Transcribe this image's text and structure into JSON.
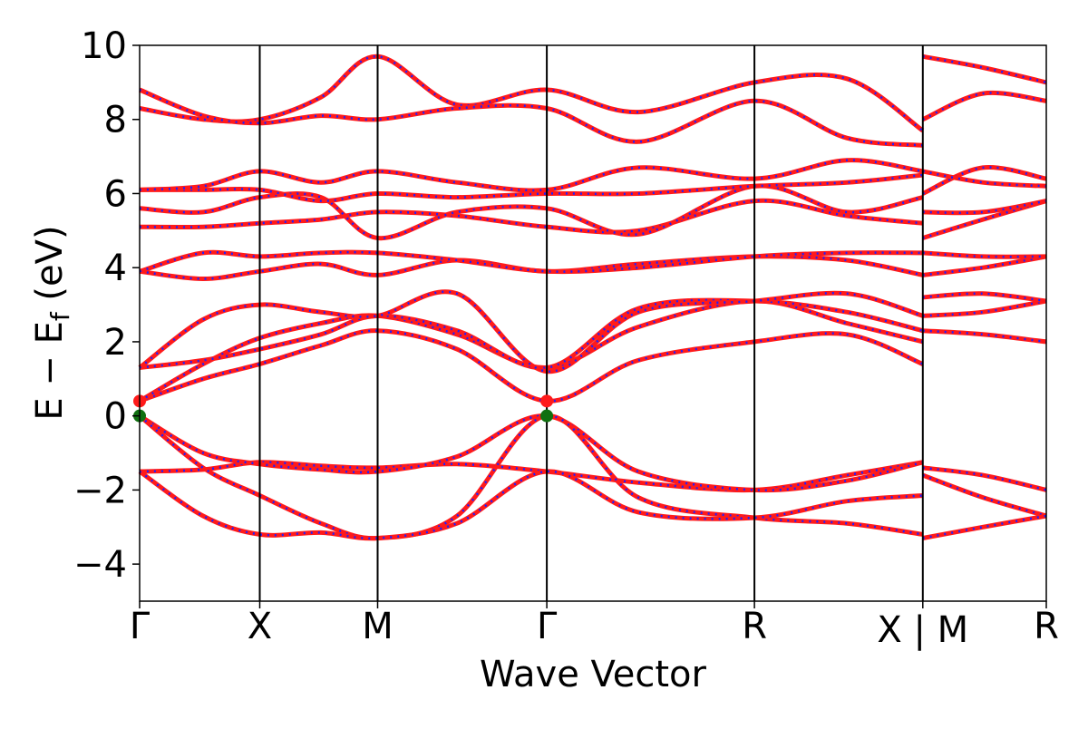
{
  "chart_data": {
    "type": "line",
    "title": "",
    "xlabel": "Wave Vector",
    "ylabel": "E − E_f (eV)",
    "ylabel_main": "E − E",
    "ylabel_sub": "f",
    "ylabel_unit": " (eV)",
    "ylim": [
      -5,
      10
    ],
    "yticks": [
      -4,
      -2,
      0,
      2,
      4,
      6,
      8,
      10
    ],
    "ytick_labels": [
      "−4",
      "−2",
      "0",
      "2",
      "4",
      "6",
      "8",
      "10"
    ],
    "xlim": [
      0,
      1
    ],
    "kpoints": [
      {
        "label": "Γ",
        "x": 0.0
      },
      {
        "label": "X",
        "x": 0.1325
      },
      {
        "label": "M",
        "x": 0.2625
      },
      {
        "label": "Γ",
        "x": 0.4491
      },
      {
        "label": "R",
        "x": 0.6781
      },
      {
        "label": "X | M",
        "x": 0.8638
      },
      {
        "label": "R",
        "x": 1.0
      }
    ],
    "line_colors": {
      "band": "#ff1a1a",
      "overlay": "#1f1fff",
      "vline": "#000000"
    },
    "markers": [
      {
        "x": 0.0,
        "y": 0.4,
        "color": "#ff1a1a"
      },
      {
        "x": 0.0,
        "y": 0.0,
        "color": "#107010"
      },
      {
        "x": 0.4491,
        "y": 0.4,
        "color": "#ff1a1a"
      },
      {
        "x": 0.4491,
        "y": 0.0,
        "color": "#107010"
      }
    ],
    "series": [
      {
        "x": [
          0,
          0.07,
          0.1325,
          0.2,
          0.2625,
          0.35,
          0.4491,
          0.55,
          0.6781,
          0.78,
          0.8638
        ],
        "values": [
          -1.5,
          -1.45,
          -1.25,
          -1.35,
          -1.4,
          -1.3,
          -1.5,
          -1.8,
          -2.0,
          -1.6,
          -1.25
        ]
      },
      {
        "x": [
          0,
          0.07,
          0.1325,
          0.2,
          0.2625,
          0.35,
          0.4491,
          0.55,
          0.6781,
          0.78,
          0.8638
        ],
        "values": [
          0.0,
          -1.0,
          -1.3,
          -1.45,
          -1.5,
          -1.1,
          0.0,
          -1.5,
          -2.0,
          -1.75,
          -1.25
        ]
      },
      {
        "x": [
          0,
          0.07,
          0.1325,
          0.2,
          0.2625,
          0.35,
          0.4491,
          0.55,
          0.6781,
          0.78,
          0.8638
        ],
        "values": [
          0.0,
          -1.4,
          -2.15,
          -2.9,
          -3.3,
          -2.7,
          0.0,
          -2.2,
          -2.75,
          -2.9,
          -3.2
        ]
      },
      {
        "x": [
          0,
          0.07,
          0.1325,
          0.2,
          0.2625,
          0.35,
          0.4491,
          0.55,
          0.6781,
          0.78,
          0.8638
        ],
        "values": [
          -1.5,
          -2.7,
          -3.2,
          -3.15,
          -3.3,
          -2.9,
          -1.5,
          -2.6,
          -2.75,
          -2.3,
          -2.15
        ]
      },
      {
        "x": [
          0,
          0.07,
          0.1325,
          0.2,
          0.2625,
          0.35,
          0.4491,
          0.55,
          0.6781,
          0.78,
          0.8638
        ],
        "values": [
          0.4,
          1.0,
          1.4,
          1.9,
          2.3,
          1.8,
          0.4,
          1.5,
          2.0,
          2.2,
          1.4
        ]
      },
      {
        "x": [
          0,
          0.07,
          0.1325,
          0.2,
          0.2625,
          0.35,
          0.4491,
          0.55,
          0.6781,
          0.78,
          0.8638
        ],
        "values": [
          0.4,
          1.4,
          2.1,
          2.5,
          2.7,
          2.2,
          1.3,
          2.4,
          3.1,
          2.5,
          2.0
        ]
      },
      {
        "x": [
          0,
          0.07,
          0.1325,
          0.2,
          0.2625,
          0.35,
          0.4491,
          0.55,
          0.6781,
          0.78,
          0.8638
        ],
        "values": [
          1.3,
          1.5,
          1.8,
          2.2,
          2.7,
          2.3,
          1.3,
          2.9,
          3.1,
          2.8,
          2.3
        ]
      },
      {
        "x": [
          0,
          0.07,
          0.1325,
          0.2,
          0.2625,
          0.35,
          0.4491,
          0.55,
          0.6781,
          0.78,
          0.8638
        ],
        "values": [
          1.3,
          2.6,
          3.0,
          2.8,
          2.7,
          3.3,
          1.2,
          2.8,
          3.1,
          3.3,
          2.7
        ]
      },
      {
        "x": [
          0,
          0.07,
          0.1325,
          0.2,
          0.2625,
          0.35,
          0.4491,
          0.55,
          0.6781,
          0.78,
          0.8638
        ],
        "values": [
          3.9,
          3.7,
          3.9,
          4.1,
          3.8,
          4.2,
          3.9,
          4.1,
          4.3,
          4.2,
          3.8
        ]
      },
      {
        "x": [
          0,
          0.07,
          0.1325,
          0.2,
          0.2625,
          0.35,
          0.4491,
          0.55,
          0.6781,
          0.78,
          0.8638
        ],
        "values": [
          3.9,
          4.4,
          4.3,
          4.4,
          4.4,
          4.2,
          3.9,
          4.0,
          4.3,
          4.4,
          4.4
        ]
      },
      {
        "x": [
          0,
          0.07,
          0.1325,
          0.2,
          0.2625,
          0.35,
          0.4491,
          0.55,
          0.6781,
          0.78,
          0.8638
        ],
        "values": [
          5.1,
          5.1,
          5.2,
          5.3,
          5.5,
          5.4,
          5.1,
          5.0,
          5.8,
          5.4,
          5.2
        ]
      },
      {
        "x": [
          0,
          0.07,
          0.1325,
          0.2,
          0.2625,
          0.35,
          0.4491,
          0.55,
          0.6781,
          0.78,
          0.8638
        ],
        "values": [
          5.6,
          5.5,
          5.9,
          5.9,
          4.8,
          5.5,
          5.6,
          4.9,
          6.2,
          5.5,
          5.9
        ]
      },
      {
        "x": [
          0,
          0.07,
          0.1325,
          0.2,
          0.2625,
          0.35,
          0.4491,
          0.55,
          0.6781,
          0.78,
          0.8638
        ],
        "values": [
          6.1,
          6.1,
          6.1,
          5.8,
          6.0,
          5.9,
          6.0,
          6.0,
          6.2,
          6.3,
          6.5
        ]
      },
      {
        "x": [
          0,
          0.07,
          0.1325,
          0.2,
          0.2625,
          0.35,
          0.4491,
          0.55,
          0.6781,
          0.78,
          0.8638
        ],
        "values": [
          6.1,
          6.2,
          6.6,
          6.3,
          6.6,
          6.3,
          6.1,
          6.7,
          6.4,
          6.9,
          6.6
        ]
      },
      {
        "x": [
          0,
          0.07,
          0.1325,
          0.2,
          0.2625,
          0.35,
          0.4491,
          0.55,
          0.6781,
          0.78,
          0.8638
        ],
        "values": [
          8.3,
          8.0,
          8.0,
          8.6,
          9.7,
          8.4,
          8.8,
          8.2,
          9.0,
          9.1,
          7.7
        ]
      },
      {
        "x": [
          0,
          0.07,
          0.1325,
          0.2,
          0.2625,
          0.35,
          0.4491,
          0.55,
          0.6781,
          0.78,
          0.8638
        ],
        "values": [
          8.8,
          8.1,
          7.9,
          8.1,
          8.0,
          8.3,
          8.3,
          7.4,
          8.5,
          7.5,
          7.3
        ]
      },
      {
        "x": [
          0.8638,
          0.93,
          1.0
        ],
        "values": [
          -1.4,
          -1.6,
          -2.0
        ]
      },
      {
        "x": [
          0.8638,
          0.93,
          1.0
        ],
        "values": [
          -1.6,
          -2.2,
          -2.7
        ]
      },
      {
        "x": [
          0.8638,
          0.93,
          1.0
        ],
        "values": [
          -3.3,
          -3.0,
          -2.7
        ]
      },
      {
        "x": [
          0.8638,
          0.93,
          1.0
        ],
        "values": [
          2.3,
          2.2,
          2.0
        ]
      },
      {
        "x": [
          0.8638,
          0.93,
          1.0
        ],
        "values": [
          2.7,
          2.8,
          3.1
        ]
      },
      {
        "x": [
          0.8638,
          0.93,
          1.0
        ],
        "values": [
          3.2,
          3.3,
          3.1
        ]
      },
      {
        "x": [
          0.8638,
          0.93,
          1.0
        ],
        "values": [
          3.8,
          4.0,
          4.3
        ]
      },
      {
        "x": [
          0.8638,
          0.93,
          1.0
        ],
        "values": [
          4.4,
          4.3,
          4.3
        ]
      },
      {
        "x": [
          0.8638,
          0.93,
          1.0
        ],
        "values": [
          4.8,
          5.3,
          5.8
        ]
      },
      {
        "x": [
          0.8638,
          0.93,
          1.0
        ],
        "values": [
          5.5,
          5.5,
          5.8
        ]
      },
      {
        "x": [
          0.8638,
          0.93,
          1.0
        ],
        "values": [
          6.0,
          6.7,
          6.4
        ]
      },
      {
        "x": [
          0.8638,
          0.93,
          1.0
        ],
        "values": [
          6.6,
          6.3,
          6.2
        ]
      },
      {
        "x": [
          0.8638,
          0.93,
          1.0
        ],
        "values": [
          8.0,
          8.7,
          8.5
        ]
      },
      {
        "x": [
          0.8638,
          0.93,
          1.0
        ],
        "values": [
          9.7,
          9.4,
          9.0
        ]
      }
    ]
  }
}
